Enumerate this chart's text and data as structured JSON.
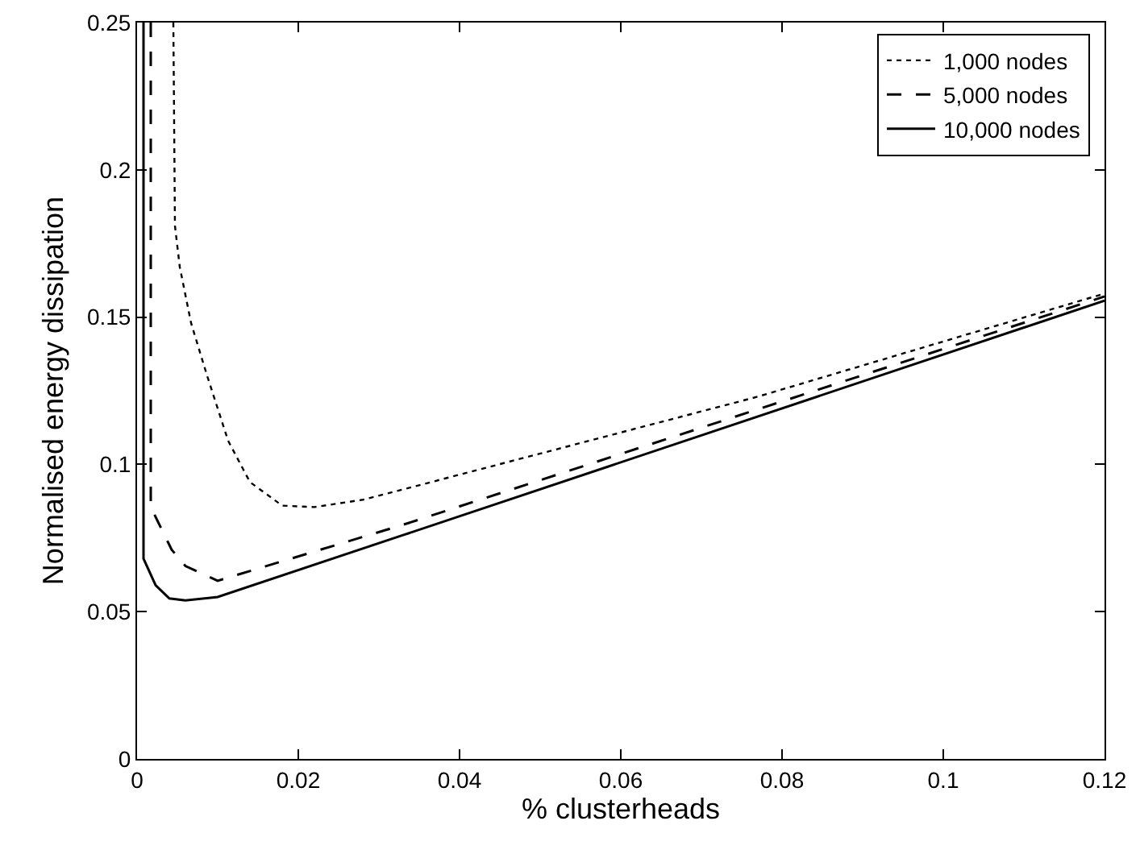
{
  "chart_data": {
    "type": "line",
    "xlabel": "% clusterheads",
    "ylabel": "Normalised energy dissipation",
    "xlim": [
      0,
      0.12
    ],
    "ylim": [
      0,
      0.25
    ],
    "xticks": [
      0,
      0.02,
      0.04,
      0.06,
      0.08,
      0.1,
      0.12
    ],
    "yticks": [
      0,
      0.05,
      0.1,
      0.15,
      0.2,
      0.25
    ],
    "grid": false,
    "legend": "top right",
    "marker": "none",
    "series": [
      {
        "name": "1,000 nodes",
        "color": "#000000",
        "line_style": "dotted",
        "x": [
          0.0045,
          0.0047,
          0.0053,
          0.0067,
          0.0087,
          0.0113,
          0.014,
          0.018,
          0.022,
          0.028,
          0.033,
          0.077,
          0.12
        ],
        "values": [
          0.25,
          0.181,
          0.167,
          0.148,
          0.13,
          0.108,
          0.094,
          0.086,
          0.0855,
          0.088,
          0.0915,
          0.123,
          0.158
        ]
      },
      {
        "name": "5,000 nodes",
        "color": "#000000",
        "line_style": "dashed",
        "x": [
          0.0017,
          0.0017,
          0.0043,
          0.006,
          0.01,
          0.033,
          0.12
        ],
        "values": [
          0.25,
          0.0855,
          0.071,
          0.0655,
          0.0605,
          0.0795,
          0.157
        ]
      },
      {
        "name": "10,000 nodes",
        "color": "#000000",
        "line_style": "solid",
        "x": [
          0.0008,
          0.0008,
          0.0023,
          0.004,
          0.006,
          0.01,
          0.033,
          0.12
        ],
        "values": [
          0.25,
          0.068,
          0.059,
          0.0545,
          0.0538,
          0.055,
          0.076,
          0.1556
        ]
      }
    ]
  }
}
